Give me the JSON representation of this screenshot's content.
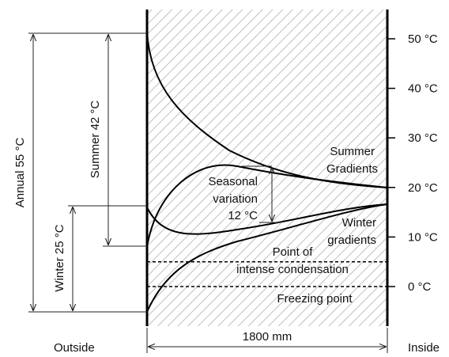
{
  "temp_axis": {
    "ticks": [
      {
        "label": "50 °C",
        "value": 50
      },
      {
        "label": "40 °C",
        "value": 40
      },
      {
        "label": "30 °C",
        "value": 30
      },
      {
        "label": "20 °C",
        "value": 20
      },
      {
        "label": "10 °C",
        "value": 10
      },
      {
        "label": "0 °C",
        "value": 0
      }
    ]
  },
  "labels": {
    "summer_gradients_1": "Summer",
    "summer_gradients_2": "Gradients",
    "winter_gradients_1": "Winter",
    "winter_gradients_2": "gradients",
    "seasonal_1": "Seasonal",
    "seasonal_2": "variation",
    "seasonal_3": "12 °C",
    "condensation_1": "Point of",
    "condensation_2": "intense condensation",
    "freezing": "Freezing point",
    "width": "1800 mm",
    "outside": "Outside",
    "inside": "Inside",
    "annual": "Annual 55 °C",
    "summer_range": "Summer 42 °C",
    "winter_range": "Winter 25 °C"
  },
  "reference_lines": {
    "condensation_temp": 5,
    "freezing_temp": 0
  },
  "ranges": {
    "annual": [
      -5,
      50
    ],
    "summer": [
      8,
      50
    ],
    "winter": [
      -5,
      20
    ],
    "seasonal_variation": [
      13,
      25
    ]
  }
}
